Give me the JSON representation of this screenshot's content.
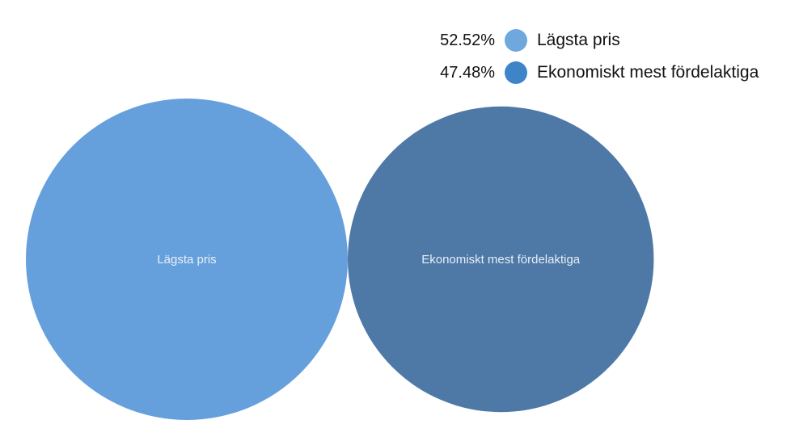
{
  "chart_data": {
    "type": "bubble",
    "title": "",
    "categories": [
      "Lägsta pris",
      "Ekonomiskt mest fördelaktiga"
    ],
    "values": [
      52.52,
      47.48
    ],
    "value_labels": [
      "52.52%",
      "47.48%"
    ],
    "bubble_colors": [
      "#66a0dc",
      "#4e79a7"
    ],
    "legend_colors": [
      "#6fa8dc",
      "#3d85c6"
    ],
    "legend_placement": "top-right"
  }
}
